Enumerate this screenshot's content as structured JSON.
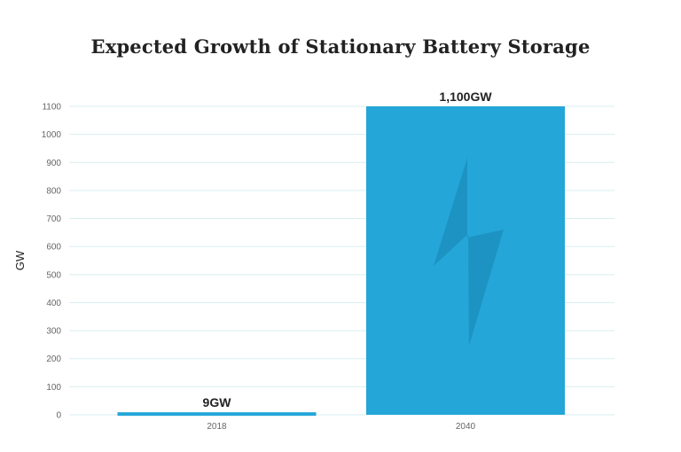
{
  "chart_data": {
    "type": "bar",
    "title": "Expected Growth of Stationary Battery Storage",
    "xlabel": "",
    "ylabel": "GW",
    "categories": [
      "2018",
      "2040"
    ],
    "values": [
      9,
      1100
    ],
    "data_labels": [
      "9GW",
      "1,100GW"
    ],
    "ylim": [
      0,
      1100
    ],
    "yticks": [
      0,
      100,
      200,
      300,
      400,
      500,
      600,
      700,
      800,
      900,
      1000,
      1100
    ],
    "grid": true,
    "legend": "none",
    "bar_color": "#24a6d8",
    "icon": "lightning-bolt-icon",
    "icon_color": "#1d93c3"
  }
}
